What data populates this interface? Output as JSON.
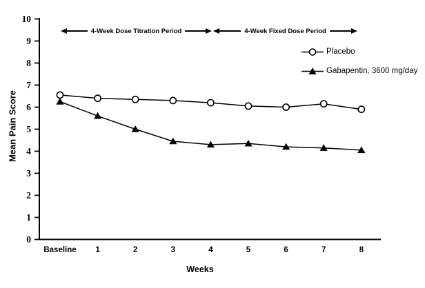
{
  "figure": {
    "y_axis_title": "Mean Pain Score",
    "x_axis_title": "Weeks",
    "annotations": {
      "titration": "4-Week Dose Titration Period",
      "fixed": "4-Week Fixed Dose Period"
    },
    "legend": {
      "placebo": "Placebo",
      "gabapentin": "Gabapentin, 3600 mg/day"
    },
    "colors": {
      "line": "#000000",
      "marker_fill_open": "#ffffff",
      "background": "#ffffff"
    }
  },
  "chart_data": {
    "type": "line",
    "title": "",
    "xlabel": "Weeks",
    "ylabel": "Mean Pain Score",
    "categories": [
      "Baseline",
      "1",
      "2",
      "3",
      "4",
      "5",
      "6",
      "7",
      "8"
    ],
    "y_ticks": [
      0,
      1,
      2,
      3,
      4,
      5,
      6,
      7,
      8,
      9,
      10
    ],
    "ylim": [
      0,
      10
    ],
    "grid": false,
    "legend_position": "upper right",
    "series": [
      {
        "name": "Placebo",
        "marker": "open-circle",
        "values": [
          6.55,
          6.4,
          6.35,
          6.3,
          6.2,
          6.05,
          6.0,
          6.15,
          5.9
        ]
      },
      {
        "name": "Gabapentin, 3600 mg/day",
        "marker": "filled-triangle",
        "values": [
          6.25,
          5.6,
          5.0,
          4.45,
          4.3,
          4.35,
          4.2,
          4.15,
          4.05
        ]
      }
    ],
    "annotations": [
      {
        "label": "4-Week Dose Titration Period",
        "x_start": "Baseline",
        "x_end": "4"
      },
      {
        "label": "4-Week Fixed Dose Period",
        "x_start": "4",
        "x_end": "8"
      }
    ]
  }
}
